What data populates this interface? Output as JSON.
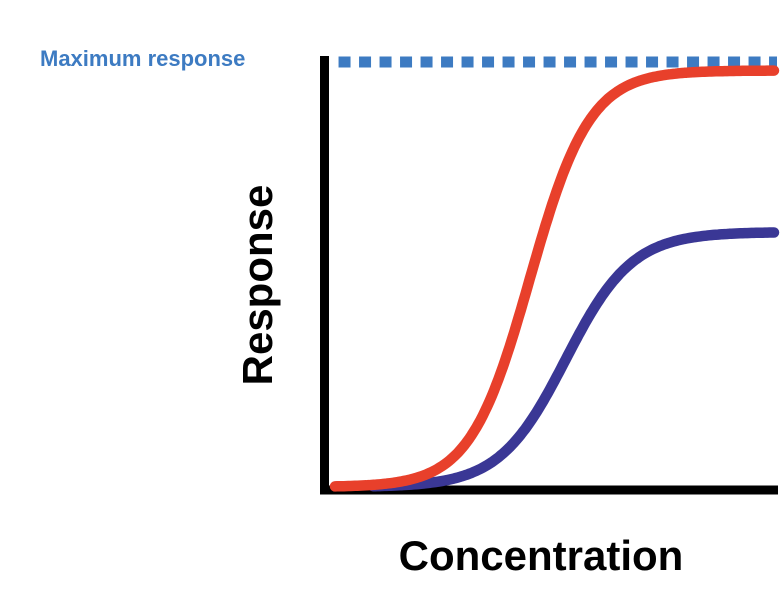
{
  "labels": {
    "max_response": "Maximum response"
  },
  "chart_data": {
    "type": "line",
    "title": "",
    "xlabel": "Concentration",
    "ylabel": "Response",
    "x_ticks": [],
    "y_ticks": [],
    "grid": false,
    "legend": "none",
    "axis_color": "#000000",
    "background_color": "#FFFFFF",
    "max_line": {
      "label": "Maximum response",
      "y_fraction": 1.0,
      "style": "dashed",
      "color": "#3D7BC2",
      "label_color": "#3D7BC2"
    },
    "series": [
      {
        "name": "red-curve",
        "shape": "sigmoid",
        "color": "#E8402B",
        "emax_fraction": 0.98,
        "ec50_fraction": 0.455,
        "slope": 15,
        "x_start": 0.02,
        "x_end": 1.0
      },
      {
        "name": "blue-curve",
        "shape": "sigmoid",
        "color": "#3A3795",
        "emax_fraction": 0.6,
        "ec50_fraction": 0.535,
        "slope": 13.5,
        "x_start": 0.105,
        "x_end": 1.0
      }
    ]
  }
}
